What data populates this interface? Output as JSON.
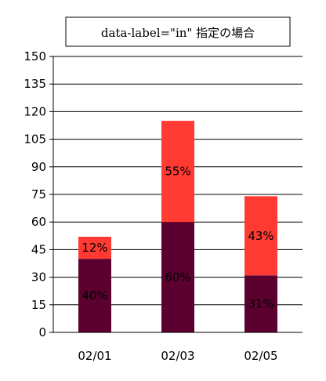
{
  "chart_data": {
    "type": "bar",
    "stacked": true,
    "title": "data-label=\"in\" 指定の場合",
    "categories": [
      "02/01",
      "02/03",
      "02/05"
    ],
    "ylim": [
      0,
      150
    ],
    "yticks": [
      0,
      15,
      30,
      45,
      60,
      75,
      90,
      105,
      120,
      135,
      150
    ],
    "grid": true,
    "series": [
      {
        "values": [
          40,
          60,
          31
        ],
        "labels": [
          "40%",
          "60%",
          "31%"
        ],
        "color": "#5c0030"
      },
      {
        "values": [
          12,
          55,
          43
        ],
        "labels": [
          "12%",
          "55%",
          "43%"
        ],
        "color": "#ff3a33"
      }
    ]
  }
}
